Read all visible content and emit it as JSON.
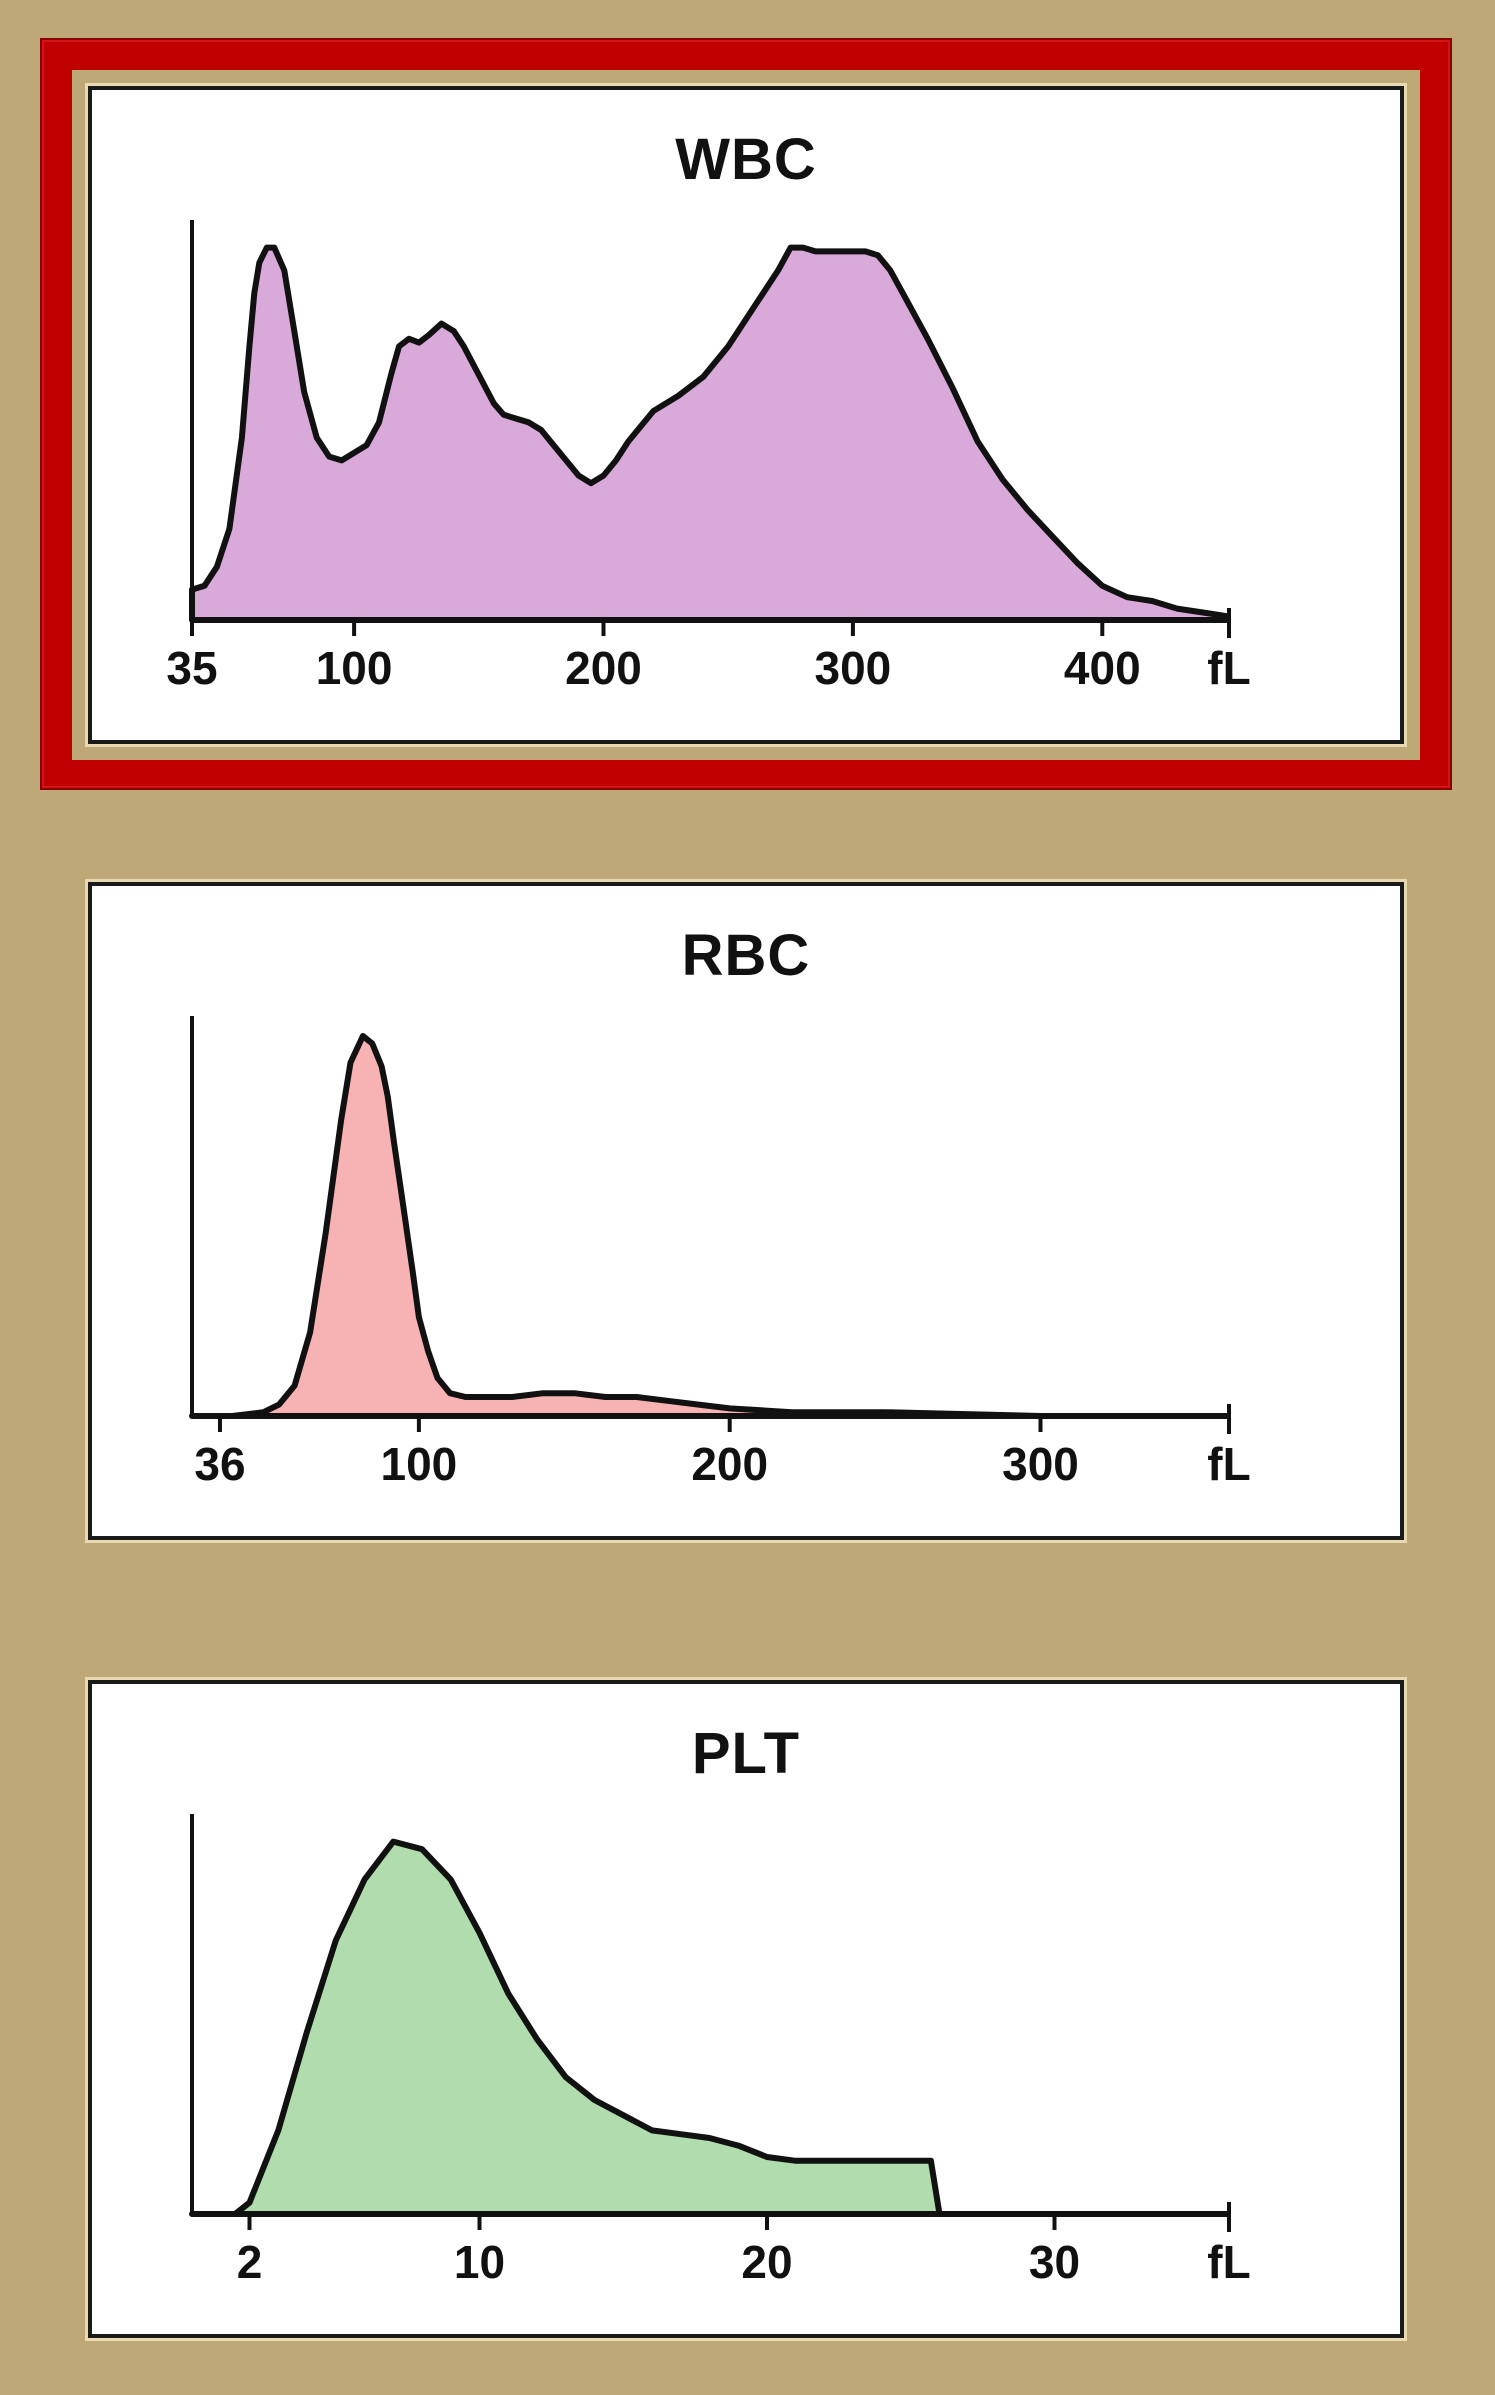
{
  "chart_data": [
    {
      "type": "area",
      "title": "WBC",
      "xlabel": "fL",
      "x_ticks": [
        {
          "value": 35,
          "label": "35"
        },
        {
          "value": 100,
          "label": "100"
        },
        {
          "value": 200,
          "label": "200"
        },
        {
          "value": 300,
          "label": "300"
        },
        {
          "value": 400,
          "label": "400"
        }
      ],
      "unit_label": "fL",
      "xlim": [
        35,
        450
      ],
      "ylim": [
        0,
        100
      ],
      "fill": "#d9aad9",
      "highlighted": true,
      "x": [
        35,
        40,
        45,
        50,
        55,
        58,
        60,
        62,
        65,
        68,
        72,
        76,
        80,
        85,
        90,
        95,
        100,
        105,
        110,
        115,
        118,
        122,
        126,
        130,
        135,
        140,
        144,
        148,
        152,
        156,
        160,
        165,
        170,
        175,
        180,
        185,
        190,
        195,
        200,
        205,
        210,
        220,
        230,
        240,
        250,
        260,
        270,
        275,
        280,
        285,
        290,
        300,
        305,
        310,
        315,
        320,
        330,
        340,
        350,
        360,
        370,
        380,
        390,
        400,
        410,
        420,
        430,
        440,
        450
      ],
      "y": [
        8,
        9,
        14,
        24,
        48,
        72,
        86,
        94,
        98,
        98,
        92,
        76,
        60,
        48,
        43,
        42,
        44,
        46,
        52,
        65,
        72,
        74,
        73,
        75,
        78,
        76,
        72,
        67,
        62,
        57,
        54,
        53,
        52,
        50,
        46,
        42,
        38,
        36,
        38,
        42,
        47,
        55,
        59,
        64,
        72,
        82,
        92,
        98,
        98,
        97,
        97,
        97,
        97,
        96,
        92,
        86,
        74,
        61,
        47,
        37,
        29,
        22,
        15,
        9,
        6,
        5,
        3,
        2,
        1
      ]
    },
    {
      "type": "area",
      "title": "RBC",
      "xlabel": "fL",
      "x_ticks": [
        {
          "value": 36,
          "label": "36"
        },
        {
          "value": 100,
          "label": "100"
        },
        {
          "value": 200,
          "label": "200"
        },
        {
          "value": 300,
          "label": "300"
        }
      ],
      "unit_label": "fL",
      "xlim": [
        27,
        360
      ],
      "ylim": [
        0,
        100
      ],
      "fill": "#f7b3b3",
      "highlighted": false,
      "x": [
        27,
        40,
        50,
        55,
        60,
        65,
        70,
        75,
        78,
        82,
        85,
        88,
        90,
        92,
        95,
        98,
        100,
        103,
        106,
        110,
        115,
        120,
        130,
        140,
        150,
        160,
        170,
        180,
        190,
        200,
        220,
        250,
        300,
        360
      ],
      "y": [
        0,
        0,
        1,
        3,
        8,
        22,
        48,
        78,
        93,
        100,
        98,
        92,
        84,
        72,
        55,
        38,
        26,
        17,
        10,
        6,
        5,
        5,
        5,
        6,
        6,
        5,
        5,
        4,
        3,
        2,
        1,
        1,
        0,
        0
      ]
    },
    {
      "type": "area",
      "title": "PLT",
      "xlabel": "fL",
      "x_ticks": [
        {
          "value": 2,
          "label": "2"
        },
        {
          "value": 10,
          "label": "10"
        },
        {
          "value": 20,
          "label": "20"
        },
        {
          "value": 30,
          "label": "30"
        }
      ],
      "unit_label": "fL",
      "xlim": [
        0,
        36
      ],
      "ylim": [
        0,
        100
      ],
      "fill": "#b1dcae",
      "highlighted": false,
      "x": [
        0,
        1.5,
        2,
        3,
        4,
        5,
        6,
        7,
        8,
        9,
        10,
        11,
        12,
        13,
        14,
        15,
        16,
        17,
        18,
        19,
        20,
        21,
        22,
        23,
        24,
        25,
        25.7,
        26,
        28,
        30,
        36
      ],
      "y": [
        0,
        0,
        3,
        22,
        48,
        72,
        88,
        98,
        96,
        88,
        74,
        58,
        46,
        36,
        30,
        26,
        22,
        21,
        20,
        18,
        15,
        14,
        14,
        14,
        14,
        14,
        14,
        0,
        0,
        0,
        0
      ]
    }
  ]
}
